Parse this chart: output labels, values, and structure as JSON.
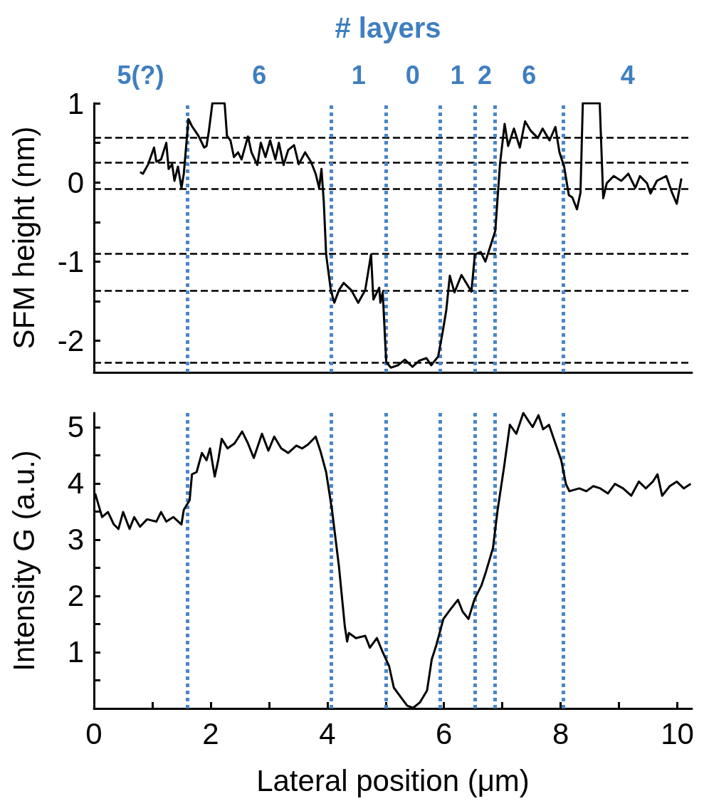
{
  "chart_data": [
    {
      "type": "line",
      "title": "# layers",
      "ylabel": "SFM height (nm)",
      "xlim": [
        0,
        10.25
      ],
      "ylim": [
        -2.4,
        1
      ],
      "yticks": [
        -2,
        {
          "value": -1.5,
          "label": null
        },
        -1,
        {
          "value": -0.5,
          "label": null
        },
        0,
        {
          "value": 0.5,
          "label": null
        },
        1
      ],
      "tick_labels": "y",
      "marker": "none",
      "series": [
        {
          "color": "#000000",
          "x": [
            0.79,
            0.84,
            0.93,
            1.03,
            1.07,
            1.15,
            1.24,
            1.28,
            1.34,
            1.38,
            1.44,
            1.5,
            1.54,
            1.62,
            1.68,
            1.79,
            1.89,
            1.93,
            1.97,
            2.03,
            2.24,
            2.28,
            2.34,
            2.4,
            2.47,
            2.53,
            2.64,
            2.7,
            2.8,
            2.86,
            2.94,
            3.02,
            3.11,
            3.17,
            3.25,
            3.33,
            3.43,
            3.51,
            3.62,
            3.72,
            3.8,
            3.86,
            3.9,
            3.94,
            3.98,
            4.06,
            4.12,
            4.2,
            4.28,
            4.41,
            4.53,
            4.65,
            4.75,
            4.79,
            4.89,
            4.91,
            4.95,
            5.01,
            5.09,
            5.21,
            5.33,
            5.46,
            5.58,
            5.7,
            5.78,
            5.9,
            5.98,
            6.04,
            6.1,
            6.18,
            6.3,
            6.47,
            6.53,
            6.63,
            6.71,
            6.79,
            6.88,
            6.96,
            7.04,
            7.1,
            7.2,
            7.3,
            7.39,
            7.49,
            7.61,
            7.69,
            7.81,
            7.91,
            7.98,
            8.06,
            8.14,
            8.2,
            8.28,
            8.34,
            8.38,
            8.67,
            8.73,
            8.79,
            8.91,
            9.04,
            9.16,
            9.28,
            9.36,
            9.48,
            9.54,
            9.65,
            9.81,
            9.91,
            9.99,
            10.07
          ],
          "values": [
            0.13,
            0.11,
            0.23,
            0.44,
            0.26,
            0.29,
            0.5,
            0.17,
            0.23,
            0.02,
            0.2,
            -0.07,
            0.11,
            0.8,
            0.71,
            0.59,
            0.44,
            0.46,
            0.65,
            1,
            1,
            0.59,
            0.53,
            0.32,
            0.38,
            0.29,
            0.58,
            0.38,
            0.22,
            0.5,
            0.32,
            0.53,
            0.29,
            0.5,
            0.22,
            0.41,
            0.47,
            0.23,
            0.38,
            0.26,
            0.11,
            -0.07,
            0.17,
            -0.25,
            -0.91,
            -1.36,
            -1.52,
            -1.36,
            -1.27,
            -1.36,
            -1.52,
            -1.36,
            -0.91,
            -1.48,
            -1.33,
            -1.52,
            -1.39,
            -2.27,
            -2.34,
            -2.31,
            -2.24,
            -2.33,
            -2.25,
            -2.22,
            -2.31,
            -2.2,
            -1.88,
            -1.61,
            -1.18,
            -1.39,
            -1.17,
            -1.38,
            -0.91,
            -0.88,
            -1,
            -0.82,
            -0.61,
            0.23,
            0.74,
            0.46,
            0.68,
            0.44,
            0.77,
            0.65,
            0.56,
            0.68,
            0.53,
            0.7,
            0.38,
            0.2,
            -0.16,
            -0.19,
            -0.34,
            -0.13,
            1,
            1,
            -0.2,
            -0.01,
            0.08,
            0.02,
            0.11,
            -0.07,
            0.08,
            -0.01,
            -0.14,
            0.02,
            0.08,
            -0.13,
            -0.27,
            0.05
          ]
        }
      ],
      "ref_lines": [
        {
          "axis": "y",
          "value": 0.57,
          "color": "#000000",
          "line_style": "dashed"
        },
        {
          "axis": "y",
          "value": 0.25,
          "color": "#000000",
          "line_style": "dashed"
        },
        {
          "axis": "y",
          "value": -0.08,
          "color": "#000000",
          "line_style": "dashed"
        },
        {
          "axis": "y",
          "value": -0.9,
          "color": "#000000",
          "line_style": "dashed"
        },
        {
          "axis": "y",
          "value": -1.37,
          "color": "#000000",
          "line_style": "dashed"
        },
        {
          "axis": "y",
          "value": -2.28,
          "color": "#000000",
          "line_style": "dashed"
        },
        {
          "axis": "x",
          "value": 1.6,
          "color": "#4a86c5",
          "line_style": "dotted"
        },
        {
          "axis": "x",
          "value": 4.07,
          "color": "#4a86c5",
          "line_style": "dotted"
        },
        {
          "axis": "x",
          "value": 5.0,
          "color": "#4a86c5",
          "line_style": "dotted"
        },
        {
          "axis": "x",
          "value": 5.93,
          "color": "#4a86c5",
          "line_style": "dotted"
        },
        {
          "axis": "x",
          "value": 6.53,
          "color": "#4a86c5",
          "line_style": "dotted"
        },
        {
          "axis": "x",
          "value": 6.87,
          "color": "#4a86c5",
          "line_style": "dotted"
        },
        {
          "axis": "x",
          "value": 8.05,
          "color": "#4a86c5",
          "line_style": "dotted"
        }
      ],
      "annotations": [
        "5(?)",
        "6",
        "1",
        "0",
        "1",
        "2",
        "6",
        "4"
      ]
    },
    {
      "type": "line",
      "xlabel": "Lateral position (μm)",
      "ylabel": "Intensity G (a.u.)",
      "xlim": [
        0,
        10.25
      ],
      "ylim": [
        0,
        5.25
      ],
      "xticks": [
        0,
        {
          "value": 1,
          "label": null
        },
        2,
        {
          "value": 3,
          "label": null
        },
        4,
        {
          "value": 5,
          "label": null
        },
        6,
        {
          "value": 7,
          "label": null
        },
        8,
        {
          "value": 9,
          "label": null
        },
        10
      ],
      "yticks": [
        {
          "value": 0.5,
          "label": null
        },
        1,
        {
          "value": 1.5,
          "label": null
        },
        2,
        {
          "value": 2.5,
          "label": null
        },
        3,
        {
          "value": 3.5,
          "label": null
        },
        4,
        {
          "value": 4.5,
          "label": null
        },
        5
      ],
      "marker": "none",
      "series": [
        {
          "color": "#000000",
          "x": [
            0.02,
            0.08,
            0.14,
            0.24,
            0.34,
            0.42,
            0.5,
            0.61,
            0.69,
            0.79,
            0.91,
            1.07,
            1.15,
            1.24,
            1.36,
            1.5,
            1.54,
            1.64,
            1.68,
            1.76,
            1.85,
            1.93,
            1.99,
            2.07,
            2.13,
            2.19,
            2.29,
            2.41,
            2.54,
            2.64,
            2.74,
            2.88,
            2.99,
            3.09,
            3.21,
            3.33,
            3.47,
            3.57,
            3.67,
            3.8,
            3.88,
            3.98,
            4.08,
            4.2,
            4.3,
            4.34,
            4.37,
            4.49,
            4.65,
            4.73,
            4.85,
            4.95,
            5.06,
            5.14,
            5.26,
            5.37,
            5.47,
            5.59,
            5.71,
            5.79,
            5.87,
            5.99,
            6.11,
            6.24,
            6.32,
            6.42,
            6.52,
            6.64,
            6.72,
            6.84,
            6.92,
            7.03,
            7.13,
            7.24,
            7.36,
            7.46,
            7.52,
            7.62,
            7.7,
            7.8,
            7.91,
            8.01,
            8.09,
            8.15,
            8.32,
            8.44,
            8.56,
            8.68,
            8.81,
            8.93,
            9.07,
            9.21,
            9.34,
            9.46,
            9.58,
            9.66,
            9.74,
            9.87,
            9.99,
            10.11,
            10.23
          ],
          "values": [
            3.82,
            3.61,
            3.4,
            3.49,
            3.27,
            3.19,
            3.49,
            3.19,
            3.4,
            3.23,
            3.36,
            3.32,
            3.49,
            3.32,
            3.4,
            3.27,
            3.53,
            3.7,
            4.16,
            4.2,
            4.54,
            4.41,
            4.62,
            4.12,
            4.41,
            4.79,
            4.62,
            4.71,
            4.92,
            4.71,
            4.45,
            4.88,
            4.58,
            4.83,
            4.62,
            4.54,
            4.67,
            4.62,
            4.69,
            4.83,
            4.58,
            4.2,
            3.53,
            2.52,
            1.46,
            1.19,
            1.34,
            1.25,
            1.29,
            1.08,
            1.25,
            1.0,
            0.75,
            0.37,
            0.2,
            0.05,
            0.01,
            0.11,
            0.32,
            0.87,
            1.13,
            1.59,
            1.76,
            1.93,
            1.72,
            1.59,
            1.93,
            2.18,
            2.43,
            2.85,
            3.53,
            4.29,
            5.04,
            4.88,
            5.25,
            5.09,
            5.0,
            5.21,
            4.96,
            5.04,
            4.71,
            4.41,
            3.99,
            3.86,
            3.91,
            3.86,
            3.95,
            3.91,
            3.82,
            3.99,
            3.91,
            3.78,
            4.03,
            3.91,
            4.03,
            4.16,
            3.78,
            3.95,
            4.03,
            3.91,
            3.99
          ]
        }
      ],
      "ref_lines": [
        {
          "axis": "x",
          "value": 1.6,
          "color": "#4a86c5",
          "line_style": "dotted"
        },
        {
          "axis": "x",
          "value": 4.07,
          "color": "#4a86c5",
          "line_style": "dotted"
        },
        {
          "axis": "x",
          "value": 5.0,
          "color": "#4a86c5",
          "line_style": "dotted"
        },
        {
          "axis": "x",
          "value": 5.93,
          "color": "#4a86c5",
          "line_style": "dotted"
        },
        {
          "axis": "x",
          "value": 6.53,
          "color": "#4a86c5",
          "line_style": "dotted"
        },
        {
          "axis": "x",
          "value": 6.87,
          "color": "#4a86c5",
          "line_style": "dotted"
        },
        {
          "axis": "x",
          "value": 8.05,
          "color": "#4a86c5",
          "line_style": "dotted"
        }
      ]
    }
  ]
}
